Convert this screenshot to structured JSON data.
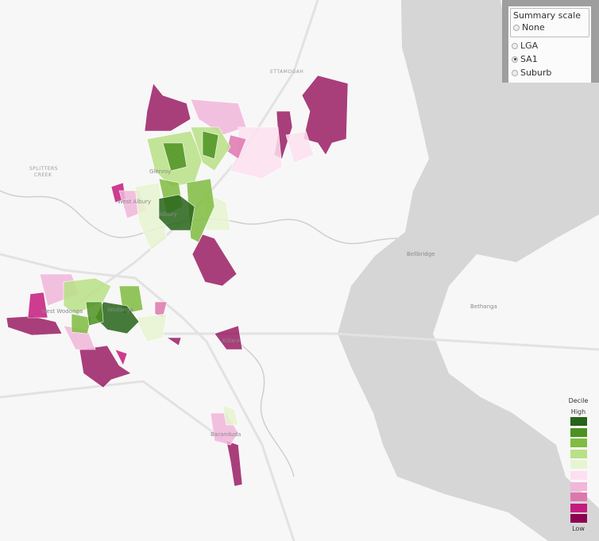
{
  "map": {
    "place_labels": {
      "ettamogah": "ETTAMOGAH",
      "splitters_1": "SPLITTERS",
      "splitters_2": "CREEK",
      "glenroy": "Glenroy",
      "west_albury": "West Albury",
      "albury": "Albury",
      "wodonga": "Wodonga",
      "west_wodonga": "West Wodonga",
      "killara": "Killara",
      "baranduda": "Baranduda",
      "bellbridge": "Bellbridge",
      "bethanga": "Bethanga"
    },
    "lake_color": "#d6d6d6"
  },
  "summary_scale": {
    "title": "Summary scale",
    "options": [
      {
        "label": "None",
        "selected": false
      },
      {
        "label": "LGA",
        "selected": false
      },
      {
        "label": "SA1",
        "selected": true
      },
      {
        "label": "Suburb",
        "selected": false
      }
    ]
  },
  "legend": {
    "title": "Decile",
    "high_label": "High",
    "low_label": "Low",
    "colors": [
      "#276419",
      "#4d9221",
      "#7fbc41",
      "#b8e186",
      "#e6f5d0",
      "#fde0ef",
      "#f1b6da",
      "#de77ae",
      "#c51b7d",
      "#8e0152"
    ]
  }
}
